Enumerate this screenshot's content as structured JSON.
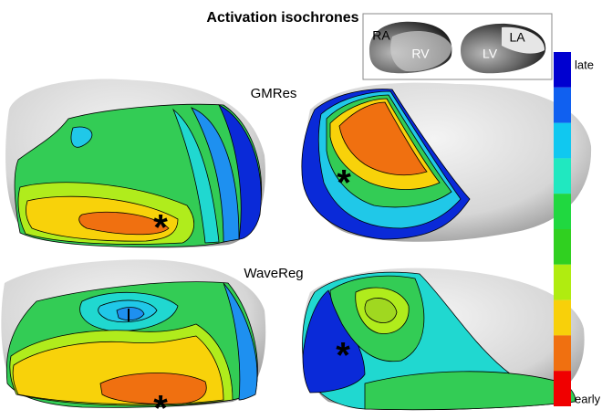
{
  "title": "Activation isochrones",
  "inset": {
    "labels": [
      "RA",
      "RV",
      "LV",
      "LA"
    ]
  },
  "panels": [
    "GMRes",
    "WaveReg"
  ],
  "colorbar": {
    "top": "late",
    "bottom": "early"
  }
}
